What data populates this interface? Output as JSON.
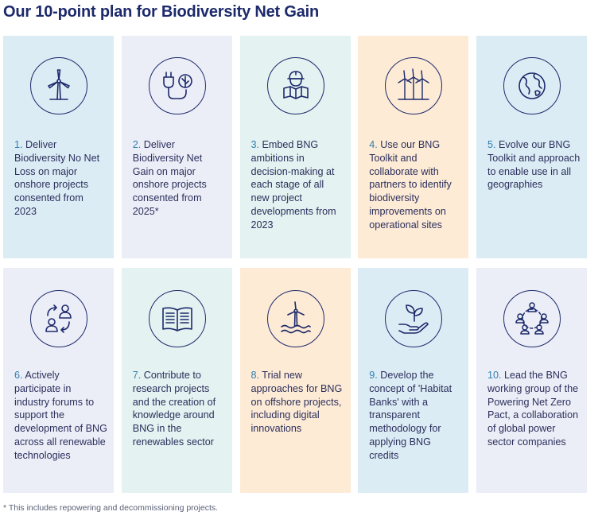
{
  "title": "Our 10-point plan for Biodiversity Net Gain",
  "colors": {
    "title": "#1d2a6b",
    "number": "#2f7fb0",
    "text": "#2b2f5c",
    "blue_card": "#dcecf5",
    "lilac_card": "#eceef7",
    "teal_card": "#e4f2f1",
    "peach_card": "#fdebd6",
    "icon_stroke": "#1d2a6b"
  },
  "cards": [
    {
      "number": "1.",
      "text": "Deliver Biodiversity No Net Loss on major onshore projects consented from 2023",
      "icon": "wind-turbine-icon",
      "bg": "#dcecf5"
    },
    {
      "number": "2.",
      "text": "Deliver Biodiversity Net Gain on major onshore projects consented from 2025*",
      "icon": "plug-leaf-icon",
      "bg": "#eceef7"
    },
    {
      "number": "3.",
      "text": "Embed BNG ambitions in decision-making at each stage of all new project developments from 2023",
      "icon": "engineer-plans-icon",
      "bg": "#e4f2f1"
    },
    {
      "number": "4.",
      "text": "Use our BNG Toolkit and collaborate with partners to identify biodiversity improvements on operational sites",
      "icon": "wind-farm-icon",
      "bg": "#fdebd6"
    },
    {
      "number": "5.",
      "text": "Evolve our BNG Toolkit and approach to enable use in all geographies",
      "icon": "globe-icon",
      "bg": "#dcecf5"
    },
    {
      "number": "6.",
      "text": "Actively participate in industry forums to support the development of BNG across all renewable technologies",
      "icon": "people-exchange-icon",
      "bg": "#eceef7"
    },
    {
      "number": "7.",
      "text": "Contribute to research projects and the creation of knowledge around BNG in the renewables sector",
      "icon": "open-book-icon",
      "bg": "#e4f2f1"
    },
    {
      "number": "8.",
      "text": "Trial new approaches for BNG on offshore projects, including digital innovations",
      "icon": "offshore-turbine-icon",
      "bg": "#fdebd6"
    },
    {
      "number": "9.",
      "text": "Develop the concept of 'Habitat Banks' with a transparent methodology for applying BNG credits",
      "icon": "hand-seedling-icon",
      "bg": "#dcecf5"
    },
    {
      "number": "10.",
      "text": "Lead the BNG working group of the Powering Net Zero Pact, a collaboration of global power sector companies",
      "icon": "group-network-icon",
      "bg": "#eceef7"
    }
  ],
  "footnote": "* This includes repowering and decommissioning projects."
}
